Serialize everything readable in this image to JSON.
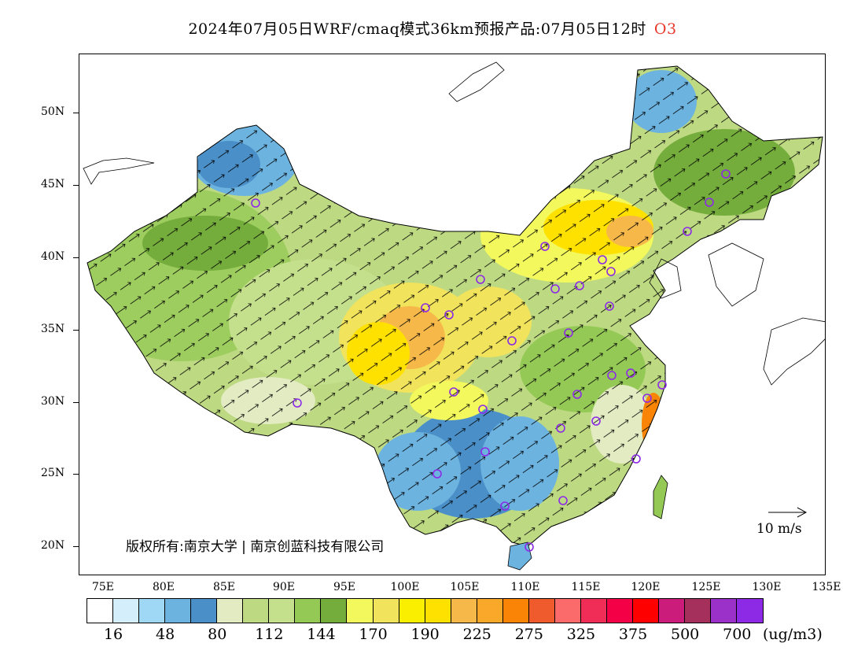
{
  "title": {
    "text": "2024年07月05日WRF/cmaq模式36km预报产品:07月05日12时",
    "species": "O3"
  },
  "axes": {
    "lat_labels": [
      "50N",
      "45N",
      "40N",
      "35N",
      "30N",
      "25N",
      "20N"
    ],
    "lon_labels": [
      "75E",
      "80E",
      "85E",
      "90E",
      "95E",
      "100E",
      "105E",
      "110E",
      "115E",
      "120E",
      "125E",
      "130E",
      "135E"
    ]
  },
  "legend": {
    "colors": [
      "#ffffff",
      "#d4eefc",
      "#9fd8f4",
      "#6cb3e0",
      "#4a8fc8",
      "#e3ebc3",
      "#bdd982",
      "#c5e08c",
      "#95c956",
      "#74ad3c",
      "#f3f95d",
      "#f1e35c",
      "#fbef00",
      "#ffe100",
      "#f7b84a",
      "#f9a82a",
      "#fa8405",
      "#ef5b2c",
      "#fb6b6b",
      "#ef2d56",
      "#f40046",
      "#fe0000",
      "#cb1c7c",
      "#a6305c",
      "#9b31c9",
      "#8c2ae6"
    ],
    "labels": [
      "16",
      "48",
      "80",
      "112",
      "144",
      "170",
      "190",
      "225",
      "275",
      "325",
      "375",
      "500",
      "700"
    ],
    "unit": "(ug/m3)"
  },
  "copyright": "版权所有:南京大学 | 南京创蓝科技有限公司",
  "wind_reference": "10 m/s"
}
